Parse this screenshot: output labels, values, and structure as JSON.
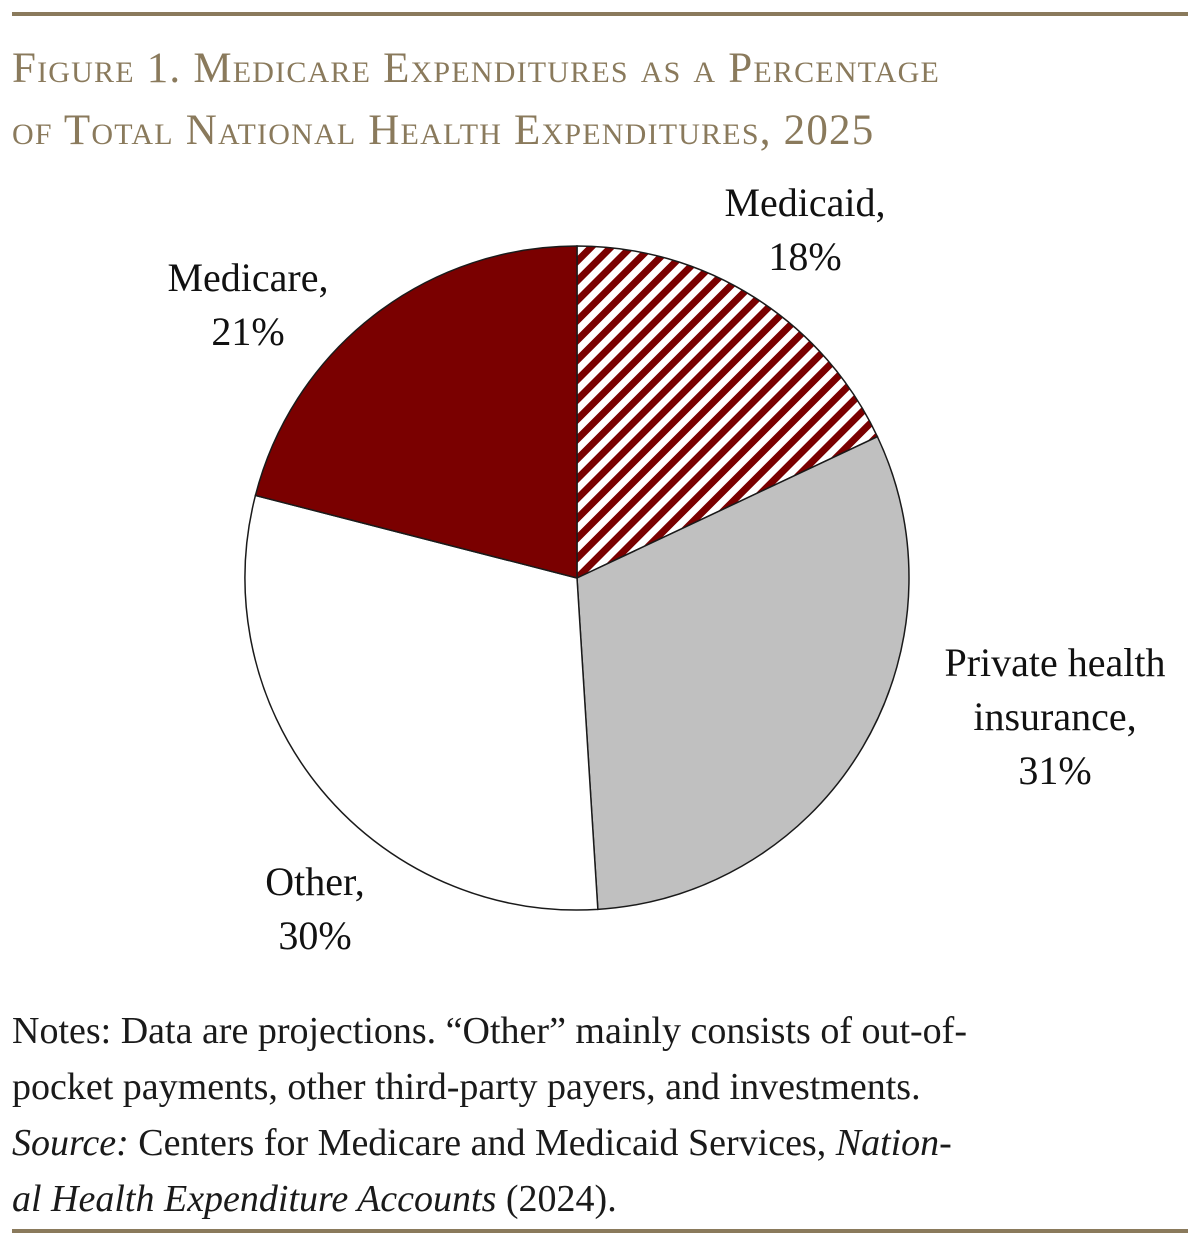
{
  "title": {
    "line1": "Figure 1. Medicare Expenditures as a Percentage",
    "line2": "of Total National Health Expenditures, 2025"
  },
  "colors": {
    "rule": "#8a7a5c",
    "title": "#8a7a5c",
    "medicare": "#7a0000",
    "medicaid_stripe": "#7a0000",
    "private": "#c0c0c0",
    "other": "#ffffff"
  },
  "chart_data": {
    "type": "pie",
    "slices": [
      {
        "id": "medicaid",
        "label_lines": [
          "Medicaid,",
          "18%"
        ],
        "value": 18,
        "fill": "hatch-red"
      },
      {
        "id": "private",
        "label_lines": [
          "Private health",
          "insurance,",
          "31%"
        ],
        "value": 31,
        "fill": "#c0c0c0"
      },
      {
        "id": "other",
        "label_lines": [
          "Other,",
          "30%"
        ],
        "value": 30,
        "fill": "#ffffff"
      },
      {
        "id": "medicare",
        "label_lines": [
          "Medicare,",
          "21%"
        ],
        "value": 21,
        "fill": "#7a0000"
      }
    ],
    "start": "top",
    "direction": "clockwise"
  },
  "notes": {
    "line1": "Notes: Data are projections. “Other” mainly consists of out-of-",
    "line2": "pocket payments, other third-party payers, and investments.",
    "source_label": "Source:",
    "line3_text": " Centers for Medicare and Medicaid Services, ",
    "line3_italic": "Nation-",
    "line4_italic": "al Health Expenditure Accounts",
    "line4_text": " (2024)."
  }
}
